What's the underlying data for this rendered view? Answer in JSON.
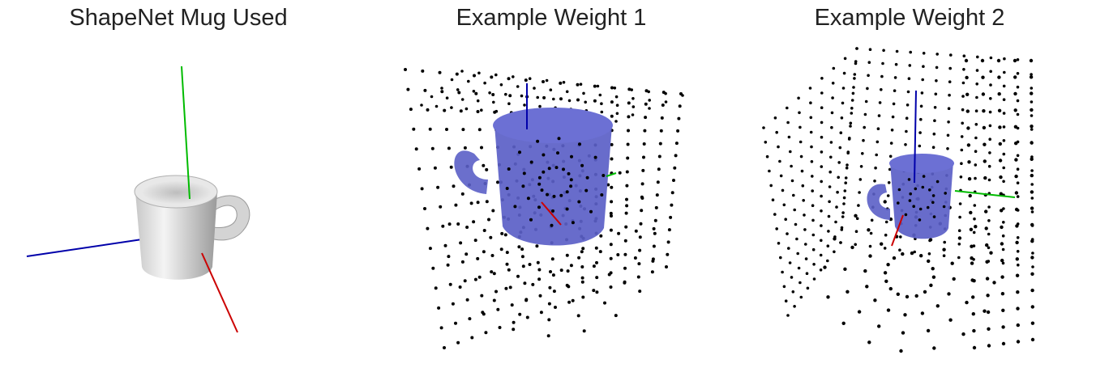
{
  "panels": [
    {
      "title": "ShapeNet Mug Used"
    },
    {
      "title": "Example Weight 1"
    },
    {
      "title": "Example Weight 2"
    }
  ],
  "colors": {
    "x_axis": "#cc0000",
    "y_axis": "#00bb00",
    "z_axis": "#0000aa",
    "mug_plain": "#dcdcdc",
    "mug_weighted": "#5b5fc7",
    "points": "#000000"
  }
}
